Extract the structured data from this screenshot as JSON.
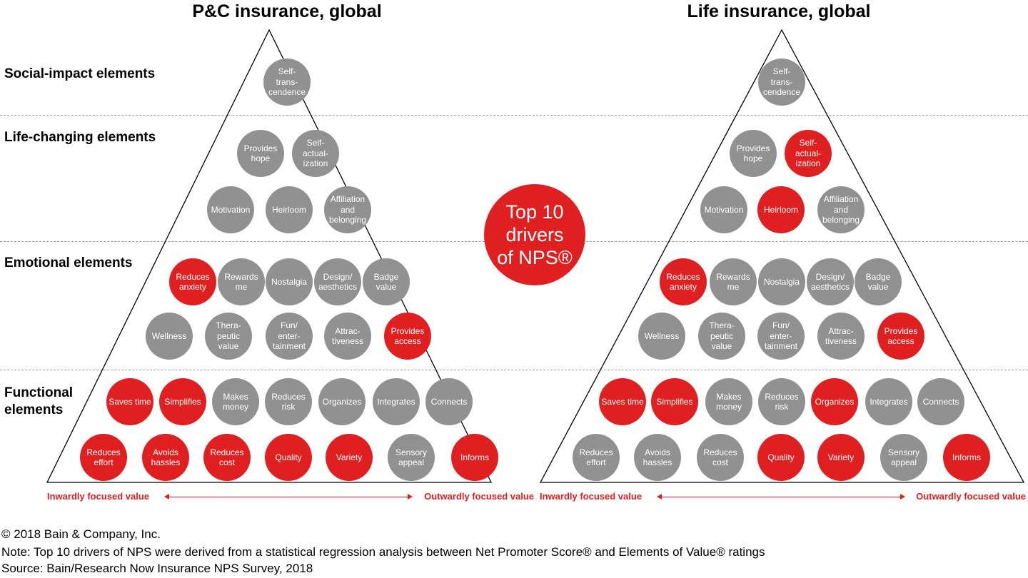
{
  "pyramids": [
    {
      "title": "P&C insurance, global",
      "circles": [
        {
          "label": "Self-\ntrans-\ncendence",
          "red": false
        },
        {
          "label": "Provides\nhope",
          "red": false
        },
        {
          "label": "Self-\nactual-\nization",
          "red": false
        },
        {
          "label": "Motivation",
          "red": false
        },
        {
          "label": "Heirloom",
          "red": false
        },
        {
          "label": "Affiliation\nand\nbelonging",
          "red": false
        },
        {
          "label": "Reduces\nanxiety",
          "red": true
        },
        {
          "label": "Rewards\nme",
          "red": false
        },
        {
          "label": "Nostalgia",
          "red": false
        },
        {
          "label": "Design/\naesthetics",
          "red": false
        },
        {
          "label": "Badge\nvalue",
          "red": false
        },
        {
          "label": "Wellness",
          "red": false
        },
        {
          "label": "Thera-\npeutic\nvalue",
          "red": false
        },
        {
          "label": "Fun/\nenter-\ntainment",
          "red": false
        },
        {
          "label": "Attrac-\ntiveness",
          "red": false
        },
        {
          "label": "Provides\naccess",
          "red": true
        },
        {
          "label": "Saves time",
          "red": true
        },
        {
          "label": "Simplifies",
          "red": true
        },
        {
          "label": "Makes\nmoney",
          "red": false
        },
        {
          "label": "Reduces\nrisk",
          "red": false
        },
        {
          "label": "Organizes",
          "red": false
        },
        {
          "label": "Integrates",
          "red": false
        },
        {
          "label": "Connects",
          "red": false
        },
        {
          "label": "Reduces\neffort",
          "red": true
        },
        {
          "label": "Avoids\nhassles",
          "red": true
        },
        {
          "label": "Reduces\ncost",
          "red": true
        },
        {
          "label": "Quality",
          "red": true
        },
        {
          "label": "Variety",
          "red": true
        },
        {
          "label": "Sensory\nappeal",
          "red": false
        },
        {
          "label": "Informs",
          "red": true
        }
      ],
      "axis": {
        "left": "Inwardly focused value",
        "right": "Outwardly focused value"
      }
    },
    {
      "title": "Life insurance, global",
      "circles": [
        {
          "label": "Self-\ntrans-\ncendence",
          "red": false
        },
        {
          "label": "Provides\nhope",
          "red": false
        },
        {
          "label": "Self-\nactual-\nization",
          "red": true
        },
        {
          "label": "Motivation",
          "red": false
        },
        {
          "label": "Heirloom",
          "red": true
        },
        {
          "label": "Affiliation\nand\nbelonging",
          "red": false
        },
        {
          "label": "Reduces\nanxiety",
          "red": true
        },
        {
          "label": "Rewards\nme",
          "red": false
        },
        {
          "label": "Nostalgia",
          "red": false
        },
        {
          "label": "Design/\naesthetics",
          "red": false
        },
        {
          "label": "Badge\nvalue",
          "red": false
        },
        {
          "label": "Wellness",
          "red": false
        },
        {
          "label": "Thera-\npeutic\nvalue",
          "red": false
        },
        {
          "label": "Fun/\nenter-\ntainment",
          "red": false
        },
        {
          "label": "Attrac-\ntiveness",
          "red": false
        },
        {
          "label": "Provides\naccess",
          "red": true
        },
        {
          "label": "Saves time",
          "red": true
        },
        {
          "label": "Simplifies",
          "red": true
        },
        {
          "label": "Makes\nmoney",
          "red": false
        },
        {
          "label": "Reduces\nrisk",
          "red": false
        },
        {
          "label": "Organizes",
          "red": true
        },
        {
          "label": "Integrates",
          "red": false
        },
        {
          "label": "Connects",
          "red": false
        },
        {
          "label": "Reduces\neffort",
          "red": false
        },
        {
          "label": "Avoids\nhassles",
          "red": false
        },
        {
          "label": "Reduces\ncost",
          "red": false
        },
        {
          "label": "Quality",
          "red": true
        },
        {
          "label": "Variety",
          "red": true
        },
        {
          "label": "Sensory\nappeal",
          "red": false
        },
        {
          "label": "Informs",
          "red": true
        }
      ],
      "axis": {
        "left": "Inwardly focused value",
        "right": "Outwardly focused value"
      }
    }
  ],
  "tiers": [
    "Social-impact elements",
    "Life-changing elements",
    "Emotional elements",
    "Functional\nelements"
  ],
  "badge": "Top 10\ndrivers\nof NPS®",
  "footer": {
    "copyright": "© 2018 Bain & Company, Inc.",
    "note": "Note: Top 10 drivers of NPS were derived from a statistical regression analysis between Net Promoter Score® and Elements of Value® ratings",
    "source": "Source: Bain/Research Now Insurance NPS Survey, 2018"
  },
  "colors": {
    "highlight": "#e02020",
    "neutral": "#919191"
  }
}
